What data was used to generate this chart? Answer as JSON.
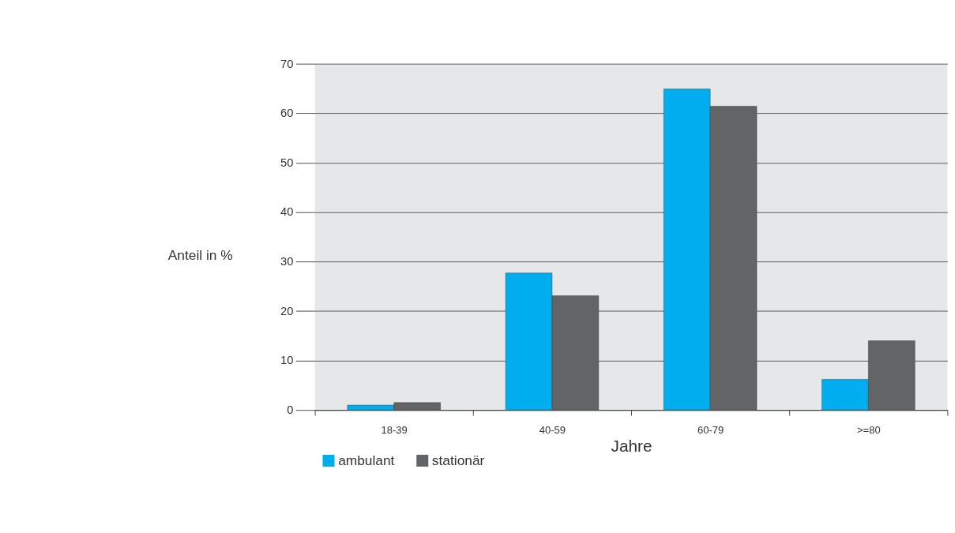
{
  "chart_data": {
    "type": "bar",
    "xlabel": "Jahre",
    "ylabel": "Anteil in %",
    "categories": [
      "18-39",
      "40-59",
      "60-79",
      ">=80"
    ],
    "series": [
      {
        "name": "ambulant",
        "color": "#00aeef",
        "values": [
          1.0,
          27.7,
          64.9,
          6.2
        ]
      },
      {
        "name": "stationär",
        "color": "#636466",
        "values": [
          1.5,
          23.1,
          61.4,
          14.0
        ]
      }
    ],
    "ylim": [
      0,
      70
    ],
    "yticks": [
      0,
      10,
      20,
      30,
      40,
      50,
      60,
      70
    ],
    "grid": "y",
    "legend": "bottom left"
  }
}
